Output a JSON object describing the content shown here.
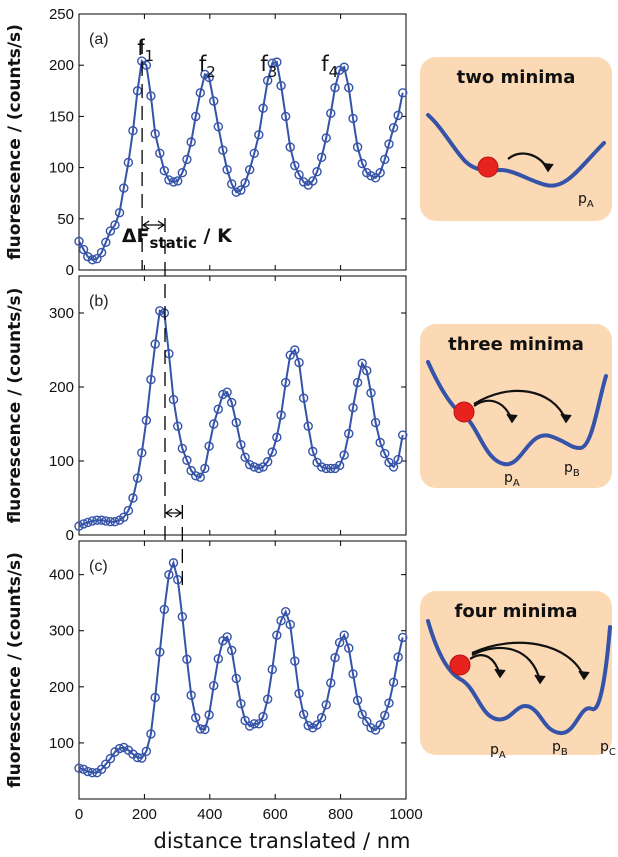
{
  "chart_data": [
    {
      "type": "line",
      "panel_label": "(a)",
      "ylabel": "fluorescence / (counts/s)",
      "xlim": [
        0,
        1000
      ],
      "ylim": [
        0,
        250
      ],
      "yticks": [
        0,
        50,
        100,
        150,
        200,
        250
      ],
      "xticks_shown": false,
      "peak_labels": [
        {
          "base": "f",
          "sub": "1",
          "x": 196,
          "y": 218
        },
        {
          "base": "f",
          "sub": "2",
          "x": 385,
          "y": 202
        },
        {
          "base": "f",
          "sub": "3",
          "x": 573,
          "y": 202
        },
        {
          "base": "f",
          "sub": "4",
          "x": 759,
          "y": 202
        }
      ],
      "annotation": {
        "text": "ΔF",
        "sub": "static",
        "suffix": " / K",
        "x": 345,
        "y": 35
      },
      "series": [
        {
          "color": "#3553a8",
          "x": [
            0,
            14,
            27,
            41,
            55,
            69,
            82,
            96,
            110,
            124,
            137,
            151,
            165,
            179,
            192,
            206,
            220,
            233,
            247,
            261,
            275,
            289,
            302,
            316,
            330,
            343,
            357,
            371,
            385,
            398,
            412,
            426,
            440,
            453,
            467,
            481,
            495,
            508,
            522,
            536,
            550,
            563,
            577,
            591,
            605,
            618,
            632,
            646,
            660,
            673,
            687,
            701,
            715,
            728,
            742,
            756,
            770,
            783,
            797,
            811,
            825,
            838,
            852,
            866,
            880,
            893,
            907,
            921,
            935,
            948,
            962,
            976,
            990
          ],
          "y": [
            28,
            20,
            13,
            10,
            11,
            17,
            27,
            38,
            44,
            56,
            80,
            105,
            136,
            175,
            204,
            200,
            170,
            133,
            114,
            97,
            88,
            86,
            87,
            95,
            108,
            125,
            150,
            173,
            191,
            188,
            165,
            140,
            117,
            98,
            84,
            76,
            78,
            85,
            98,
            114,
            132,
            158,
            185,
            202,
            203,
            180,
            150,
            120,
            102,
            93,
            86,
            83,
            87,
            96,
            110,
            129,
            153,
            178,
            195,
            198,
            178,
            148,
            120,
            104,
            95,
            92,
            90,
            95,
            108,
            123,
            139,
            151,
            173
          ]
        }
      ]
    },
    {
      "type": "line",
      "panel_label": "(b)",
      "ylabel": "fluorescence / (counts/s)",
      "xlim": [
        0,
        1000
      ],
      "ylim": [
        0,
        350
      ],
      "yticks": [
        0,
        100,
        200,
        300
      ],
      "xticks_shown": false,
      "series": [
        {
          "color": "#3553a8",
          "x": [
            0,
            14,
            27,
            41,
            55,
            69,
            82,
            96,
            110,
            124,
            137,
            151,
            165,
            179,
            192,
            206,
            220,
            233,
            247,
            261,
            275,
            289,
            302,
            316,
            330,
            343,
            357,
            371,
            385,
            398,
            412,
            426,
            440,
            453,
            467,
            481,
            495,
            508,
            522,
            536,
            550,
            563,
            577,
            591,
            605,
            618,
            632,
            646,
            660,
            673,
            687,
            701,
            715,
            728,
            742,
            756,
            770,
            783,
            797,
            811,
            825,
            838,
            852,
            866,
            880,
            893,
            907,
            921,
            935,
            948,
            962,
            976,
            990
          ],
          "y": [
            12,
            15,
            17,
            19,
            20,
            20,
            19,
            18,
            18,
            20,
            24,
            33,
            50,
            77,
            111,
            155,
            210,
            258,
            303,
            300,
            245,
            183,
            147,
            117,
            101,
            87,
            80,
            78,
            90,
            120,
            150,
            170,
            190,
            193,
            179,
            152,
            122,
            105,
            95,
            92,
            90,
            92,
            99,
            112,
            132,
            162,
            206,
            243,
            250,
            233,
            185,
            147,
            113,
            98,
            92,
            90,
            90,
            90,
            94,
            108,
            137,
            172,
            206,
            232,
            222,
            192,
            152,
            125,
            110,
            98,
            92,
            102,
            135
          ]
        }
      ]
    },
    {
      "type": "line",
      "panel_label": "(c)",
      "ylabel": "fluorescence / (counts/s)",
      "xlabel": "distance translated / nm",
      "xlim": [
        0,
        1000
      ],
      "ylim": [
        0,
        460
      ],
      "yticks": [
        100,
        200,
        300,
        400
      ],
      "xticks": [
        0,
        200,
        400,
        600,
        800,
        1000
      ],
      "series": [
        {
          "color": "#3553a8",
          "x": [
            0,
            14,
            27,
            41,
            55,
            69,
            82,
            96,
            110,
            124,
            137,
            151,
            165,
            179,
            192,
            206,
            220,
            233,
            247,
            261,
            275,
            289,
            302,
            316,
            330,
            343,
            357,
            371,
            385,
            398,
            412,
            426,
            440,
            453,
            467,
            481,
            495,
            508,
            522,
            536,
            550,
            563,
            577,
            591,
            605,
            618,
            632,
            646,
            660,
            673,
            687,
            701,
            715,
            728,
            742,
            756,
            770,
            783,
            797,
            811,
            825,
            838,
            852,
            866,
            880,
            893,
            907,
            921,
            935,
            948,
            962,
            976,
            990
          ],
          "y": [
            55,
            53,
            49,
            47,
            47,
            53,
            62,
            72,
            84,
            90,
            92,
            87,
            80,
            74,
            73,
            85,
            116,
            181,
            262,
            338,
            400,
            421,
            391,
            325,
            249,
            185,
            145,
            125,
            124,
            150,
            202,
            250,
            282,
            289,
            265,
            215,
            170,
            140,
            130,
            134,
            134,
            147,
            178,
            231,
            292,
            318,
            334,
            311,
            246,
            188,
            151,
            131,
            127,
            132,
            145,
            168,
            207,
            252,
            279,
            292,
            269,
            223,
            176,
            151,
            138,
            127,
            123,
            132,
            149,
            171,
            208,
            253,
            288
          ]
        }
      ]
    }
  ],
  "guides": {
    "dashed_x": [
      193,
      263,
      316
    ],
    "arrow_a": {
      "x1": 193,
      "x2": 263
    },
    "arrow_b": {
      "x1": 263,
      "x2": 316
    }
  },
  "insets": [
    {
      "title": "two minima",
      "labels": [
        {
          "base": "p",
          "sub": "A"
        }
      ],
      "arrows": 1
    },
    {
      "title": "three minima",
      "labels": [
        {
          "base": "p",
          "sub": "A"
        },
        {
          "base": "p",
          "sub": "B"
        }
      ],
      "arrows": 2
    },
    {
      "title": "four minima",
      "labels": [
        {
          "base": "p",
          "sub": "A"
        },
        {
          "base": "p",
          "sub": "B"
        },
        {
          "base": "p",
          "sub": "C"
        }
      ],
      "arrows": 3
    }
  ],
  "colors": {
    "series": "#3553a8",
    "inset_bg": "#fbd9b5",
    "inset_curve": "#3553a8",
    "ball": "#e8231f"
  }
}
